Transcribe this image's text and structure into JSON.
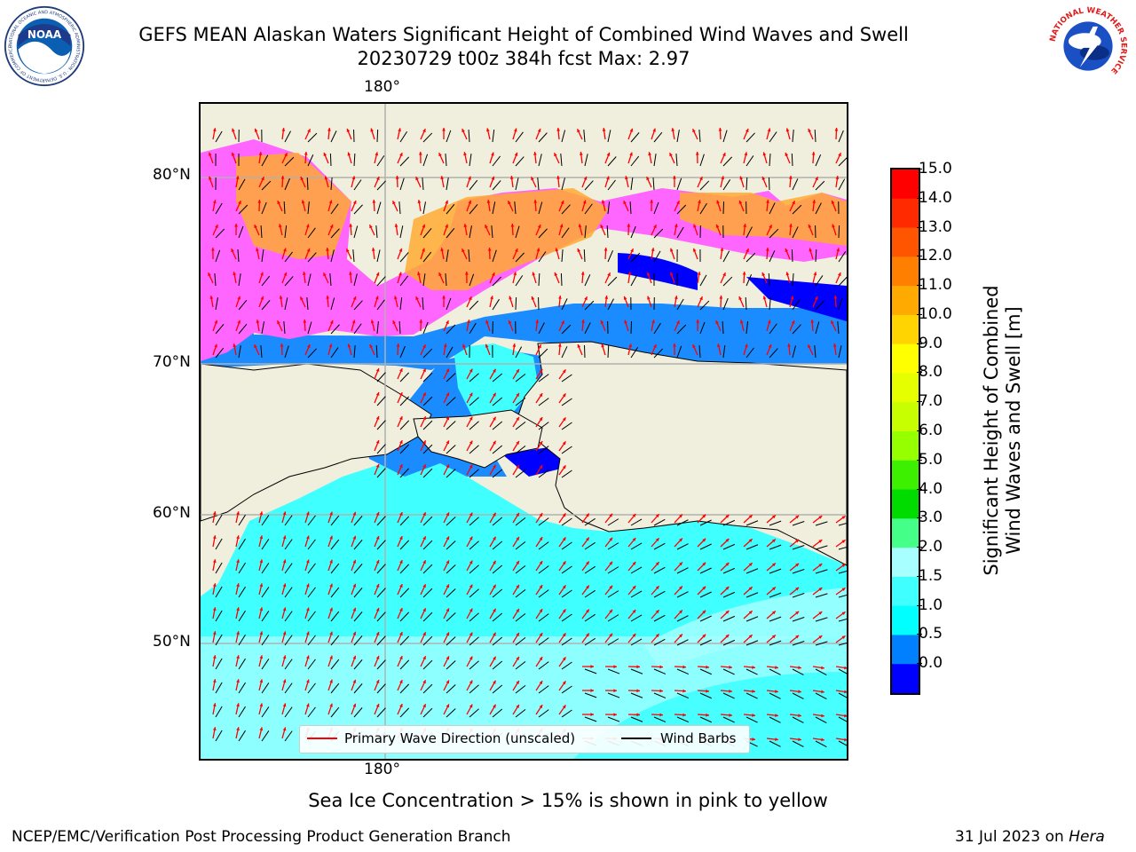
{
  "header": {
    "title_line1": "GEFS MEAN Alaskan Waters Significant Height of Combined Wind Waves and Swell",
    "title_line2": "20230729 t00z 384h fcst   Max: 2.97"
  },
  "logos": {
    "noaa_text": "NOAA",
    "noaa_ring_text": "NATIONAL OCEANIC AND ATMOSPHERIC ADMINISTRATION · U.S. DEPARTMENT OF COMMERCE",
    "nws_ring_text": "NATIONAL WEATHER SERVICE"
  },
  "map": {
    "lon_label_top": "180°",
    "lon_label_bottom": "180°",
    "lat_labels": [
      "80°N",
      "70°N",
      "60°N",
      "50°N"
    ],
    "colors": {
      "land": "#f0eedc",
      "ocean_light": "#a8ffff",
      "ocean_cyan": "#40ffff",
      "ocean_mid": "#1a8cff",
      "ocean_dark": "#0000ff",
      "ice_pink": "#ff66ff",
      "ice_orange": "#ffaa33",
      "wave_arrow": "#ff0000",
      "wind_barb": "#000000"
    }
  },
  "colorbar": {
    "ticks": [
      "15.0",
      "14.0",
      "13.0",
      "12.0",
      "11.0",
      "10.0",
      "9.0",
      "8.0",
      "7.0",
      "6.0",
      "5.0",
      "4.0",
      "3.0",
      "2.0",
      "1.5",
      "1.0",
      "0.5",
      "0.0"
    ],
    "colors_top_to_bottom": [
      "#ff0000",
      "#ff2a00",
      "#ff5500",
      "#ff8000",
      "#ffaa00",
      "#ffd400",
      "#ffff00",
      "#e6ff00",
      "#c8ff00",
      "#96ff00",
      "#3cf000",
      "#00dc00",
      "#44ff88",
      "#a8ffff",
      "#40ffff",
      "#00ffff",
      "#0080ff",
      "#0000ff"
    ],
    "label_line1": "Significant Height of Combined",
    "label_line2": "Wind Waves and Swell [m]"
  },
  "legend": {
    "wave_label": "Primary Wave Direction (unscaled)",
    "wind_label": "Wind Barbs"
  },
  "footer": {
    "note": "Sea Ice Concentration > 15% is shown in pink to yellow",
    "credit_left": "NCEP/EMC/Verification Post Processing Product Generation Branch",
    "date": "31 Jul 2023 on ",
    "host": "Hera"
  }
}
